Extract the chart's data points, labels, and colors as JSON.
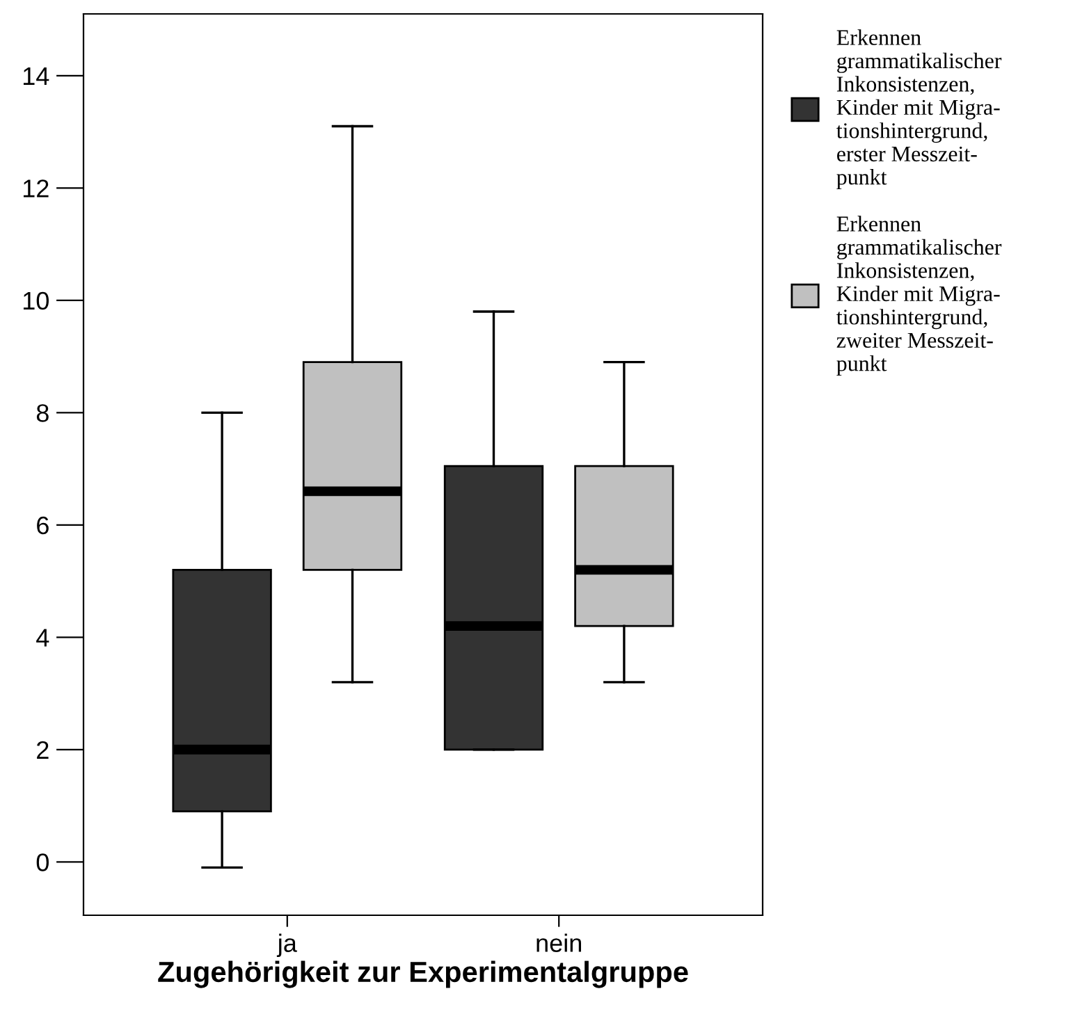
{
  "chart_data": {
    "type": "box",
    "xlabel": "Zugehörigkeit zur Experimentalgruppe",
    "categories": [
      "ja",
      "nein"
    ],
    "ylim": [
      -0.95,
      15.1
    ],
    "yticks": [
      0,
      2,
      4,
      6,
      8,
      10,
      12,
      14
    ],
    "grid": false,
    "legend": "right",
    "series": [
      {
        "name": "Erkennen\ngrammatikalischer\nInkonsistenzen,\nKinder mit Migra-\ntionshintergrund,\nerster Messzeit-\npunkt",
        "color": "#333333",
        "boxes": [
          {
            "low": -0.1,
            "q1": 0.9,
            "median": 2.0,
            "q3": 5.2,
            "high": 8.0
          },
          {
            "low": 2.0,
            "q1": 2.0,
            "median": 4.2,
            "q3": 7.05,
            "high": 9.8
          }
        ]
      },
      {
        "name": "Erkennen\ngrammatikalischer\nInkonsistenzen,\nKinder mit Migra-\ntionshintergrund,\nzweiter Messzeit-\npunkt",
        "color": "#c0c0c0",
        "boxes": [
          {
            "low": 3.2,
            "q1": 5.2,
            "median": 6.6,
            "q3": 8.9,
            "high": 13.1
          },
          {
            "low": 3.2,
            "q1": 4.2,
            "median": 5.2,
            "q3": 7.05,
            "high": 8.9
          }
        ]
      }
    ]
  }
}
